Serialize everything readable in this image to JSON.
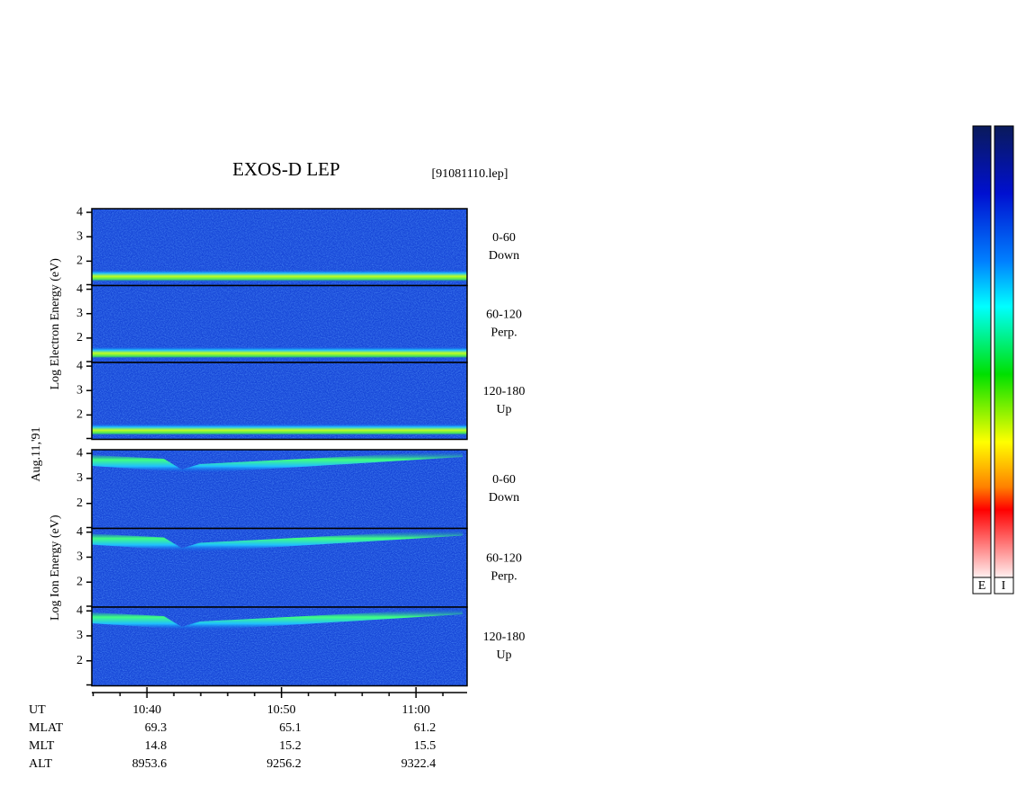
{
  "chart_data": {
    "type": "spectrogram",
    "title": "EXOS-D LEP",
    "subtitle": "[91081110.lep]",
    "date_label": "Aug.11,'91",
    "groups": [
      {
        "ylabel": "Log Electron Energy (eV)",
        "species": "electron",
        "panels": [
          {
            "angle": "0-60",
            "direction": "Down"
          },
          {
            "angle": "60-120",
            "direction": "Perp."
          },
          {
            "angle": "120-180",
            "direction": "Up"
          }
        ]
      },
      {
        "ylabel": "Log Ion Energy (eV)",
        "species": "ion",
        "panels": [
          {
            "angle": "0-60",
            "direction": "Down"
          },
          {
            "angle": "60-120",
            "direction": "Perp."
          },
          {
            "angle": "120-180",
            "direction": "Up"
          }
        ]
      }
    ],
    "ylim": [
      1,
      4.15
    ],
    "yticks": [
      2,
      3,
      4
    ],
    "xlim": [
      35.9,
      63.8
    ],
    "xticks": [
      {
        "value": 40,
        "label": "10:40"
      },
      {
        "value": 50,
        "label": "10:50"
      },
      {
        "value": 60,
        "label": "11:00"
      }
    ],
    "xminorticks": [
      36,
      38,
      42,
      44,
      46,
      48,
      52,
      54,
      56,
      58,
      62
    ],
    "xlabel": "UT",
    "orbit": [
      {
        "name": "MLAT",
        "values": [
          69.3,
          65.1,
          61.2
        ]
      },
      {
        "name": "MLT",
        "values": [
          14.8,
          15.2,
          15.5
        ]
      },
      {
        "name": "ALT",
        "values": [
          8953.6,
          9256.2,
          9322.4
        ]
      }
    ],
    "colorbars": [
      "E",
      "I"
    ]
  }
}
